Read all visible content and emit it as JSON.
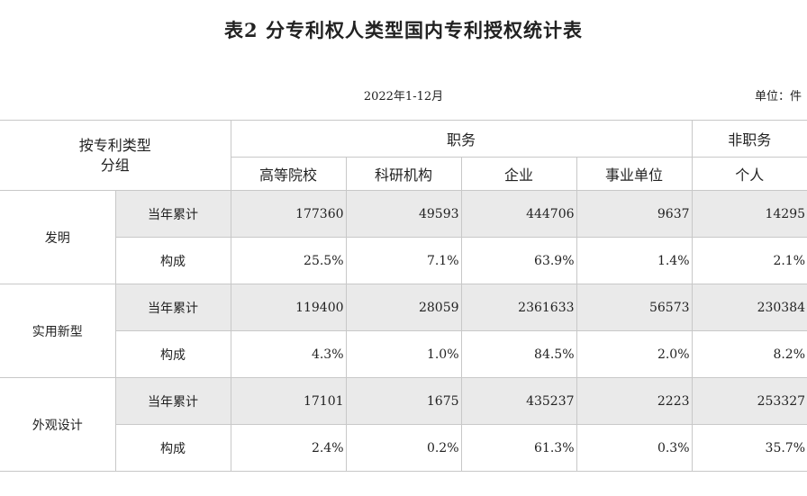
{
  "title": "表2  分专利权人类型国内专利授权统计表",
  "period": "2022年1-12月",
  "unit": "单位：件",
  "corner_line1": "按专利类型",
  "corner_line2": "分组",
  "group_service": "职务",
  "group_nonservice": "非职务",
  "columns": [
    "高等院校",
    "科研机构",
    "企业",
    "事业单位",
    "个人"
  ],
  "rows": [
    {
      "category": "发明",
      "cumulative": {
        "label": "当年累计",
        "values": [
          "177360",
          "49593",
          "444706",
          "9637",
          "14295"
        ]
      },
      "share": {
        "label": "构成",
        "values": [
          "25.5%",
          "7.1%",
          "63.9%",
          "1.4%",
          "2.1%"
        ]
      }
    },
    {
      "category": "实用新型",
      "cumulative": {
        "label": "当年累计",
        "values": [
          "119400",
          "28059",
          "2361633",
          "56573",
          "230384"
        ]
      },
      "share": {
        "label": "构成",
        "values": [
          "4.3%",
          "1.0%",
          "84.5%",
          "2.0%",
          "8.2%"
        ]
      }
    },
    {
      "category": "外观设计",
      "cumulative": {
        "label": "当年累计",
        "values": [
          "17101",
          "1675",
          "435237",
          "2223",
          "253327"
        ]
      },
      "share": {
        "label": "构成",
        "values": [
          "2.4%",
          "0.2%",
          "61.3%",
          "0.3%",
          "35.7%"
        ]
      }
    }
  ]
}
